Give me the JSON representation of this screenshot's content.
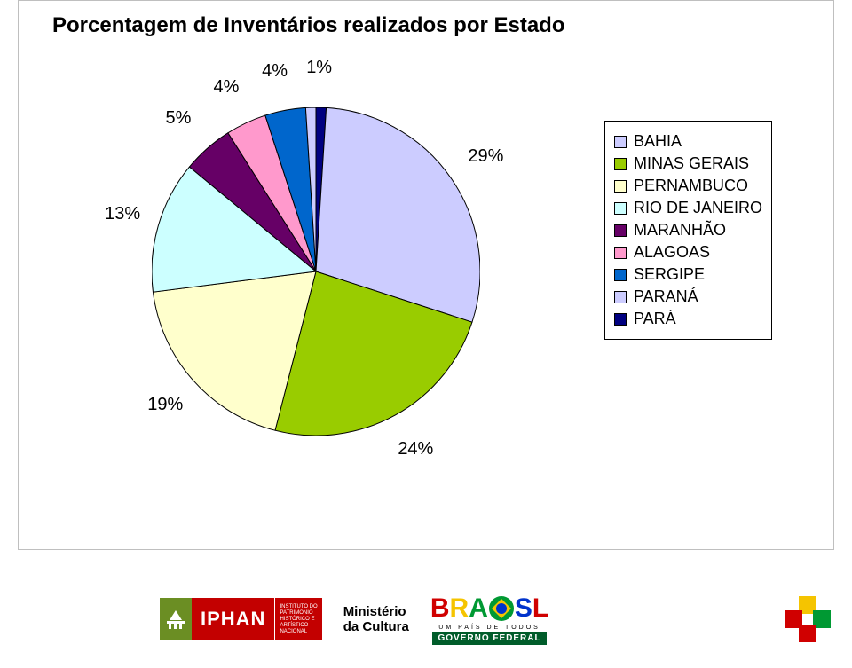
{
  "chart": {
    "type": "pie",
    "title": "Porcentagem de Inventários realizados por Estado",
    "title_fontsize": 24,
    "title_color": "#000000",
    "frame_border_color": "#bfbfbf",
    "background_color": "#ffffff",
    "pie": {
      "start_angle_deg": -90,
      "radius": 185,
      "slice_border_color": "#000000",
      "slice_border_width": 1,
      "label_fontsize": 20,
      "label_outside_gap": 44,
      "slices": [
        {
          "label": "PARÁ",
          "value": 1,
          "color": "#000080",
          "label_text": "1%"
        },
        {
          "label": "BAHIA",
          "value": 29,
          "color": "#ccccff",
          "label_text": "29%"
        },
        {
          "label": "MINAS GERAIS",
          "value": 24,
          "color": "#99cc00",
          "label_text": "24%"
        },
        {
          "label": "PERNAMBUCO",
          "value": 19,
          "color": "#ffffcc",
          "label_text": "19%"
        },
        {
          "label": "RIO DE JANEIRO",
          "value": 13,
          "color": "#ccffff",
          "label_text": "13%"
        },
        {
          "label": "MARANHÃO",
          "value": 5,
          "color": "#660066",
          "label_text": "5%"
        },
        {
          "label": "ALAGOAS",
          "value": 4,
          "color": "#ff99cc",
          "label_text": "4%"
        },
        {
          "label": "SERGIPE",
          "value": 4,
          "color": "#0066cc",
          "label_text": "4%"
        },
        {
          "label": "PARANÁ",
          "value": 1,
          "color": "#ccccff",
          "label_text": ""
        }
      ]
    },
    "legend": {
      "fontsize": 18,
      "border_color": "#000000",
      "items": [
        {
          "label": "BAHIA",
          "color": "#ccccff"
        },
        {
          "label": "MINAS GERAIS",
          "color": "#99cc00"
        },
        {
          "label": "PERNAMBUCO",
          "color": "#ffffcc"
        },
        {
          "label": "RIO DE JANEIRO",
          "color": "#ccffff"
        },
        {
          "label": "MARANHÃO",
          "color": "#660066"
        },
        {
          "label": "ALAGOAS",
          "color": "#ff99cc"
        },
        {
          "label": "SERGIPE",
          "color": "#0066cc"
        },
        {
          "label": "PARANÁ",
          "color": "#ccccff"
        },
        {
          "label": "PARÁ",
          "color": "#000080"
        }
      ]
    }
  },
  "footer": {
    "iphan": {
      "text": "IPHAN",
      "sub1": "INSTITUTO DO",
      "sub2": "PATRIMÔNIO",
      "sub3": "HISTÓRICO E",
      "sub4": "ARTÍSTICO",
      "sub5": "NACIONAL",
      "bg_green": "#6b8e23",
      "bg_red": "#c30000"
    },
    "minc": {
      "line1": "Ministério",
      "line2": "da Cultura"
    },
    "brasil": {
      "letters": [
        {
          "t": "B",
          "c": "#d00000"
        },
        {
          "t": "R",
          "c": "#f5c400"
        },
        {
          "t": "A",
          "c": "#009933"
        },
        {
          "t": "S",
          "c": "#0033cc"
        },
        {
          "t": "L",
          "c": "#d00000"
        }
      ],
      "flag_bg": "#009933",
      "flag_diamond": "#f5c400",
      "flag_circle": "#0033cc",
      "mid_text": "UM PAÍS DE TODOS",
      "bot_text": "GOVERNO FEDERAL",
      "bot_bg": "#005c2a"
    },
    "plus": {
      "top": "#f5c400",
      "right": "#009933",
      "bottom": "#d00000",
      "left": "#d00000"
    }
  }
}
